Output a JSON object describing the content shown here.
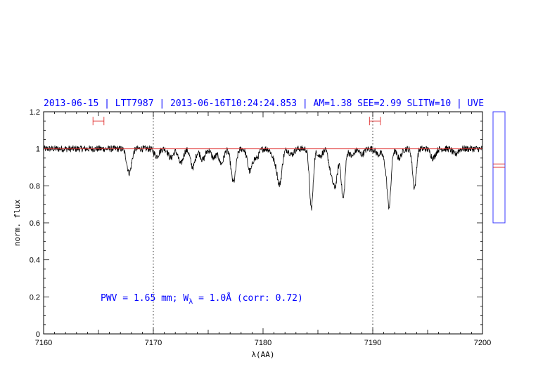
{
  "chart_data": {
    "type": "line",
    "title": "2013-06-15 | LTT7987 | 2013-06-16T10:24:24.853 | AM=1.38  SEE=2.99  SLITW=10 | UVE",
    "xlabel": "λ(AA)",
    "ylabel": "norm. flux",
    "xlim": [
      7160,
      7200
    ],
    "ylim": [
      0,
      1.2
    ],
    "x_ticks": [
      "7160",
      "7170",
      "7180",
      "7190",
      "7200"
    ],
    "y_ticks": [
      "0",
      "0.2",
      "0.4",
      "0.6",
      "0.8",
      "1",
      "1.2"
    ],
    "grid": false,
    "reference_lines": {
      "continuum_y": 1.0,
      "dotted_x": [
        7170,
        7190
      ]
    },
    "fit_windows": [
      [
        7164.5,
        7165.5
      ],
      [
        7189.7,
        7190.7
      ]
    ],
    "annotation": {
      "prefix": "PWV = 1.65 mm; W",
      "subscript": "λ",
      "suffix": " = 1.0Å (corr: 0.72)"
    },
    "absorption_lines": [
      {
        "x": 7167.8,
        "depth": 0.13
      },
      {
        "x": 7170.3,
        "depth": 0.04
      },
      {
        "x": 7171.6,
        "depth": 0.05
      },
      {
        "x": 7172.5,
        "depth": 0.08
      },
      {
        "x": 7173.6,
        "depth": 0.1
      },
      {
        "x": 7174.5,
        "depth": 0.06
      },
      {
        "x": 7175.5,
        "depth": 0.05
      },
      {
        "x": 7176.2,
        "depth": 0.08
      },
      {
        "x": 7177.3,
        "depth": 0.18
      },
      {
        "x": 7178.8,
        "depth": 0.12
      },
      {
        "x": 7179.4,
        "depth": 0.05
      },
      {
        "x": 7181.0,
        "depth": 0.05
      },
      {
        "x": 7181.5,
        "depth": 0.19
      },
      {
        "x": 7182.6,
        "depth": 0.03
      },
      {
        "x": 7184.4,
        "depth": 0.32
      },
      {
        "x": 7185.2,
        "depth": 0.04
      },
      {
        "x": 7186.2,
        "depth": 0.11
      },
      {
        "x": 7186.6,
        "depth": 0.18
      },
      {
        "x": 7187.3,
        "depth": 0.27
      },
      {
        "x": 7188.1,
        "depth": 0.04
      },
      {
        "x": 7189.0,
        "depth": 0.03
      },
      {
        "x": 7190.5,
        "depth": 0.03
      },
      {
        "x": 7191.2,
        "depth": 0.08
      },
      {
        "x": 7191.5,
        "depth": 0.28
      },
      {
        "x": 7192.4,
        "depth": 0.05
      },
      {
        "x": 7193.8,
        "depth": 0.21
      },
      {
        "x": 7195.5,
        "depth": 0.05
      },
      {
        "x": 7197.5,
        "depth": 0.03
      }
    ],
    "side_panel": {
      "box_ylim": [
        0,
        1
      ],
      "mark_values": [
        0.5,
        0.53
      ]
    }
  }
}
